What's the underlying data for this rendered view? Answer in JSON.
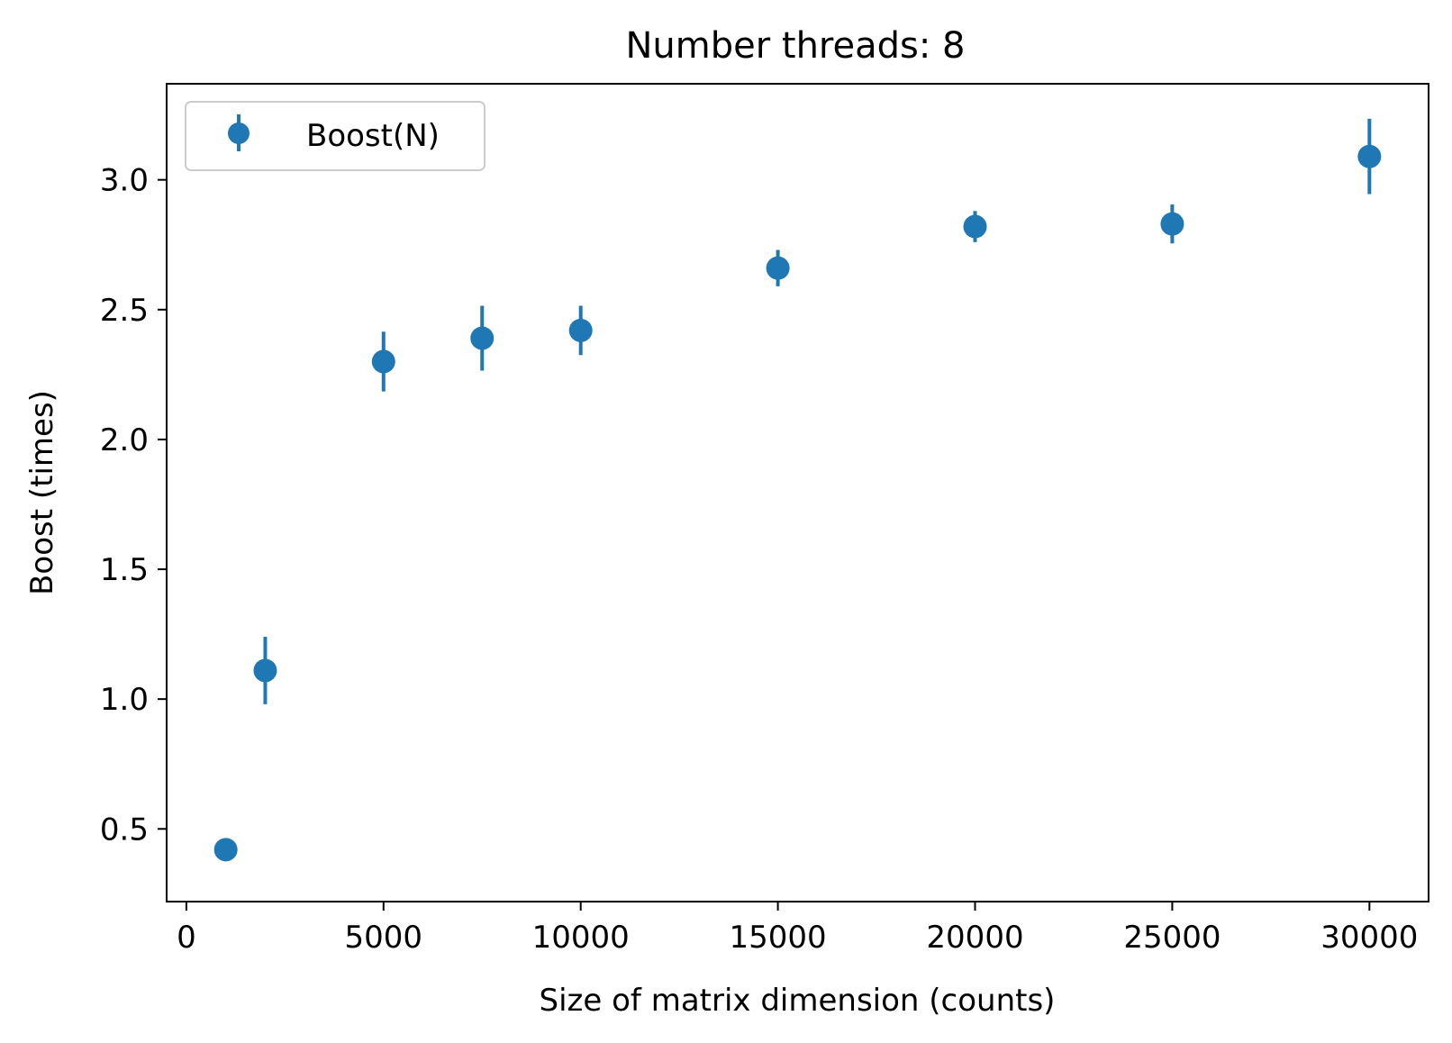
{
  "chart_data": {
    "type": "scatter",
    "title": "Number threads: 8",
    "xlabel": "Size of matrix dimension (counts)",
    "ylabel": "Boost (times)",
    "xlim": [
      -500,
      31500
    ],
    "ylim": [
      0.22,
      3.37
    ],
    "x_ticks": [
      0,
      5000,
      10000,
      15000,
      20000,
      25000,
      30000
    ],
    "y_ticks": [
      0.5,
      1.0,
      1.5,
      2.0,
      2.5,
      3.0
    ],
    "x_tick_labels": [
      "0",
      "5000",
      "10000",
      "15000",
      "20000",
      "25000",
      "30000"
    ],
    "y_tick_labels": [
      "0.5",
      "1.0",
      "1.5",
      "2.0",
      "2.5",
      "3.0"
    ],
    "grid": false,
    "legend_position": "upper-left",
    "series": [
      {
        "name": "Boost(N)",
        "color": "#1f77b4",
        "marker": "circle-with-errorbars",
        "points": [
          {
            "x": 1000,
            "y": 0.42,
            "err": 0.0
          },
          {
            "x": 2000,
            "y": 1.11,
            "err": 0.13
          },
          {
            "x": 5000,
            "y": 2.3,
            "err": 0.115
          },
          {
            "x": 7500,
            "y": 2.39,
            "err": 0.125
          },
          {
            "x": 10000,
            "y": 2.42,
            "err": 0.095
          },
          {
            "x": 15000,
            "y": 2.66,
            "err": 0.07
          },
          {
            "x": 20000,
            "y": 2.82,
            "err": 0.06
          },
          {
            "x": 25000,
            "y": 2.83,
            "err": 0.075
          },
          {
            "x": 30000,
            "y": 3.09,
            "err": 0.145
          }
        ]
      }
    ]
  }
}
